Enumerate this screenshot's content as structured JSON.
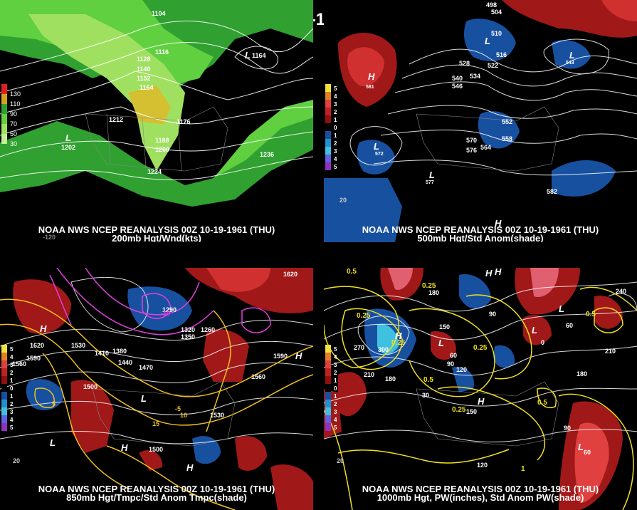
{
  "title": "00Z 10-19-1961 (THU)",
  "panels": [
    {
      "id": "200mb",
      "caption_line1": "NOAA NWS NCEP REANALYSIS 00Z 10-19-1961 (THU)",
      "caption_line2": "200mb Hgt/Wnd(kts)",
      "legend": [
        "130",
        "110",
        "90",
        "70",
        "50",
        "30"
      ],
      "legend_colors": [
        "#e02020",
        "#d4a020",
        "#30a030",
        "#60d040",
        "#a0e060",
        "#c0f090"
      ],
      "contour_labels": [
        "1104",
        "1116",
        "1128",
        "1140",
        "1152",
        "1164",
        "1176",
        "1188",
        "1200",
        "1212",
        "1224",
        "1236",
        "1164",
        "1202"
      ],
      "center_labels": [
        "L",
        "L"
      ],
      "lon_labels": [
        "-120"
      ]
    },
    {
      "id": "500mb",
      "caption_line1": "NOAA NWS NCEP REANALYSIS 00Z 10-19-1961 (THU)",
      "caption_line2": "500mb Hgt/Std Anom(shade)",
      "legend": [
        "5",
        "4",
        "3",
        "2",
        "1",
        "0",
        "1",
        "2",
        "3",
        "4",
        "5"
      ],
      "legend_colors": [
        "#f0e040",
        "#e08020",
        "#e04040",
        "#c02020",
        "#901010",
        "#000000",
        "#1850a0",
        "#2090d0",
        "#40c0e0",
        "#6060e0",
        "#9030c0"
      ],
      "contour_labels": [
        "498",
        "504",
        "510",
        "516",
        "522",
        "528",
        "534",
        "540",
        "546",
        "552",
        "558",
        "564",
        "570",
        "576",
        "582",
        "581",
        "572",
        "577",
        "543",
        "516",
        "504"
      ],
      "center_labels": [
        "H",
        "L",
        "L",
        "L",
        "L",
        "H"
      ],
      "lon_labels": [
        "-120",
        "20"
      ]
    },
    {
      "id": "850mb",
      "caption_line1": "NOAA NWS NCEP REANALYSIS 00Z 10-19-1961 (THU)",
      "caption_line2": "850mb Hgt/Tmpc/Std Anom Tmpc(shade)",
      "legend": [
        "5",
        "4",
        "3",
        "2",
        "1",
        "0",
        "1",
        "2",
        "3",
        "4",
        "5"
      ],
      "legend_colors": [
        "#f0e040",
        "#e08020",
        "#e04040",
        "#c02020",
        "#901010",
        "#000000",
        "#1850a0",
        "#2090d0",
        "#40c0e0",
        "#6060e0",
        "#9030c0"
      ],
      "contour_labels": [
        "1620",
        "1590",
        "1560",
        "1530",
        "1500",
        "1470",
        "1440",
        "1410",
        "1380",
        "1350",
        "1320",
        "1290",
        "1260",
        "1620",
        "1620",
        "1590",
        "1560",
        "1530",
        "1500",
        "1470"
      ],
      "temp_labels": [
        "-10",
        "-5",
        "5",
        "10",
        "15",
        "-5"
      ],
      "center_labels": [
        "H",
        "H",
        "L",
        "H",
        "L",
        "H"
      ],
      "lon_labels": [
        "-120",
        "20"
      ]
    },
    {
      "id": "1000mb",
      "caption_line1": "NOAA NWS NCEP REANALYSIS 00Z 10-19-1961 (THU)",
      "caption_line2": "1000mb Hgt, PW(inches), Std Anom PW(shade)",
      "legend": [
        "5",
        "4",
        "3",
        "2",
        "1",
        "0",
        "1",
        "2",
        "3",
        "4",
        "5"
      ],
      "legend_colors": [
        "#f0e040",
        "#e08020",
        "#e04040",
        "#c02020",
        "#901010",
        "#000000",
        "#1850a0",
        "#2090d0",
        "#40c0e0",
        "#6060e0",
        "#9030c0"
      ],
      "contour_labels": [
        "180",
        "240",
        "270",
        "300",
        "210",
        "180",
        "150",
        "120",
        "90",
        "60",
        "30",
        "0",
        "60",
        "150",
        "180",
        "210",
        "240",
        "120",
        "90",
        "60"
      ],
      "pw_labels": [
        "0.5",
        "0.25",
        "0.25",
        "0.25",
        "0.5",
        "0.25",
        "0.25",
        "0.5",
        "0.25",
        "0.5",
        "1",
        "0.5"
      ],
      "center_labels": [
        "H",
        "H",
        "L",
        "L",
        "H",
        "L",
        "H",
        "L"
      ],
      "lon_labels": [
        "-120",
        "20"
      ]
    }
  ]
}
